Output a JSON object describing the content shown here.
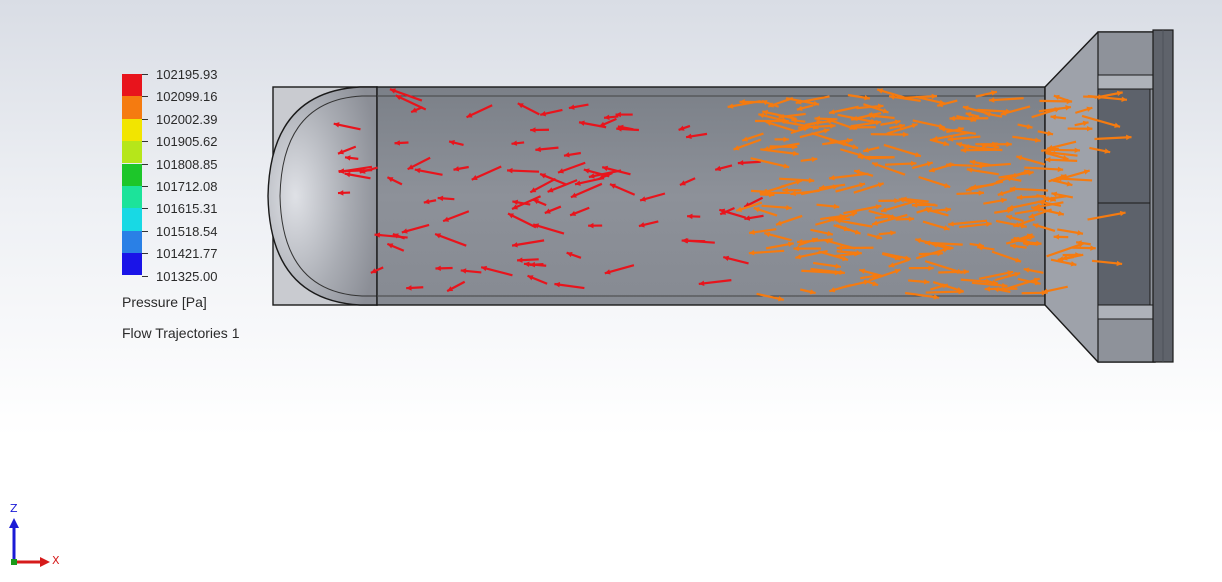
{
  "legend": {
    "colors": [
      "#e8141c",
      "#f57b10",
      "#f2e500",
      "#b6e61a",
      "#1dc62a",
      "#1ce39a",
      "#18d9e4",
      "#2a80e6",
      "#1a14e8"
    ],
    "ticks": [
      "102195.93",
      "102099.16",
      "102002.39",
      "101905.62",
      "101808.85",
      "101712.08",
      "101615.31",
      "101518.54",
      "101421.77",
      "101325.00"
    ],
    "title": "Pressure [Pa]",
    "subtitle": "Flow Trajectories 1"
  },
  "triad": {
    "z_label": "Z",
    "x_label": "X"
  },
  "icons": {
    "triad": "coordinate-axes-icon"
  }
}
